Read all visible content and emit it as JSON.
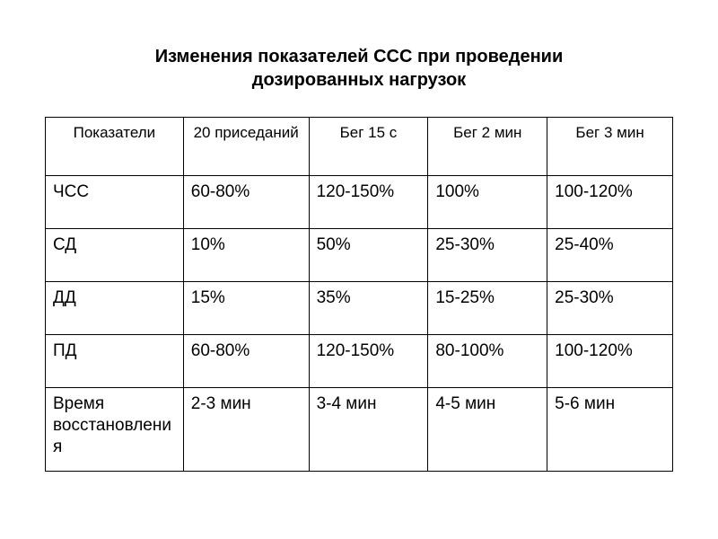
{
  "title_line1": "Изменения показателей ССС при проведении",
  "title_line2": "дозированных нагрузок",
  "table": {
    "type": "table",
    "background_color": "#ffffff",
    "border_color": "#000000",
    "text_color": "#000000",
    "title_fontsize": 20,
    "header_fontsize": 17,
    "cell_fontsize": 19,
    "column_widths_pct": [
      22,
      20,
      19,
      19,
      20
    ],
    "columns": [
      "Показатели",
      "20 приседаний",
      "Бег 15 с",
      "Бег 2 мин",
      "Бег 3 мин"
    ],
    "rows": [
      {
        "label": "ЧСС",
        "cells": [
          "60-80%",
          "120-150%",
          "100%",
          "100-120%"
        ]
      },
      {
        "label": "СД",
        "cells": [
          "10%",
          "50%",
          "25-30%",
          "25-40%"
        ]
      },
      {
        "label": "ДД",
        "cells": [
          "15%",
          "35%",
          "15-25%",
          "25-30%"
        ]
      },
      {
        "label": "ПД",
        "cells": [
          "60-80%",
          "120-150%",
          "80-100%",
          "100-120%"
        ]
      },
      {
        "label": "Время восстановления",
        "cells": [
          "2-3 мин",
          "3-4 мин",
          "4-5 мин",
          "5-6 мин"
        ]
      }
    ]
  }
}
